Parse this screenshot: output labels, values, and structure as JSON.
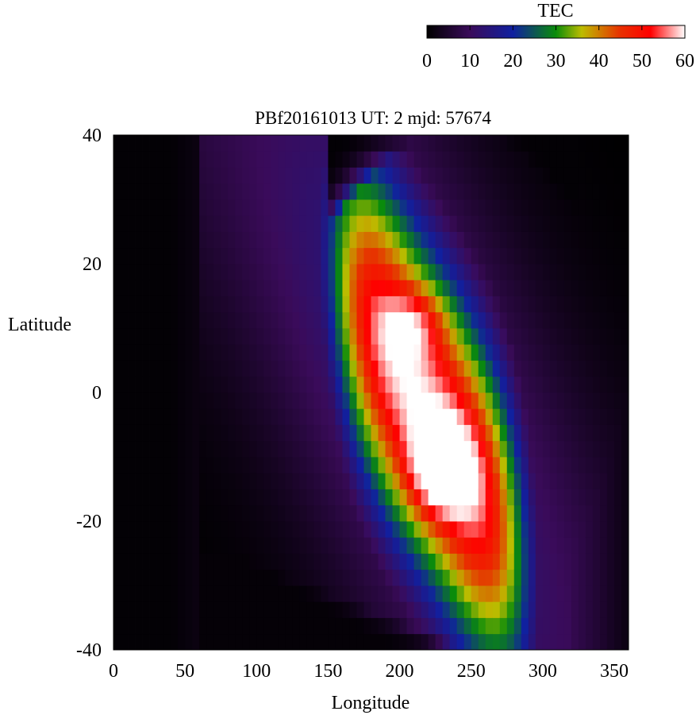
{
  "chart_data": {
    "type": "heatmap",
    "title": "PBf20161013  UT: 2  mjd: 57674",
    "xlabel": "Longitude",
    "ylabel": "Latitude",
    "xlim": [
      0,
      360
    ],
    "ylim": [
      -40,
      40
    ],
    "x_ticks": [
      "0",
      "50",
      "100",
      "150",
      "200",
      "250",
      "300",
      "350"
    ],
    "y_ticks": [
      "40",
      "20",
      "0",
      "-20",
      "-40"
    ],
    "grid": false,
    "colorbar": {
      "label": "TEC",
      "range": [
        0,
        60
      ],
      "ticks": [
        "0",
        "10",
        "20",
        "30",
        "40",
        "50",
        "60"
      ],
      "stops": [
        [
          0,
          "#000000"
        ],
        [
          10,
          "#3a0b5a"
        ],
        [
          20,
          "#1020a0"
        ],
        [
          30,
          "#0a8c0a"
        ],
        [
          36,
          "#bcbc00"
        ],
        [
          45,
          "#e83000"
        ],
        [
          52,
          "#ff0000"
        ],
        [
          60,
          "#ffffff"
        ]
      ]
    },
    "grid_resolution": {
      "lon_step_deg": 5,
      "lat_step_deg": 2.5
    },
    "cells_note_fields": [
      "center_lon",
      "center_lat",
      "peak_tec"
    ],
    "features": {
      "peak": {
        "lon": 225,
        "lat": -12,
        "tec": 60
      },
      "secondary_peak": {
        "lon": 215,
        "lat": 10,
        "tec": 55
      },
      "background_min_tec": 0
    }
  }
}
